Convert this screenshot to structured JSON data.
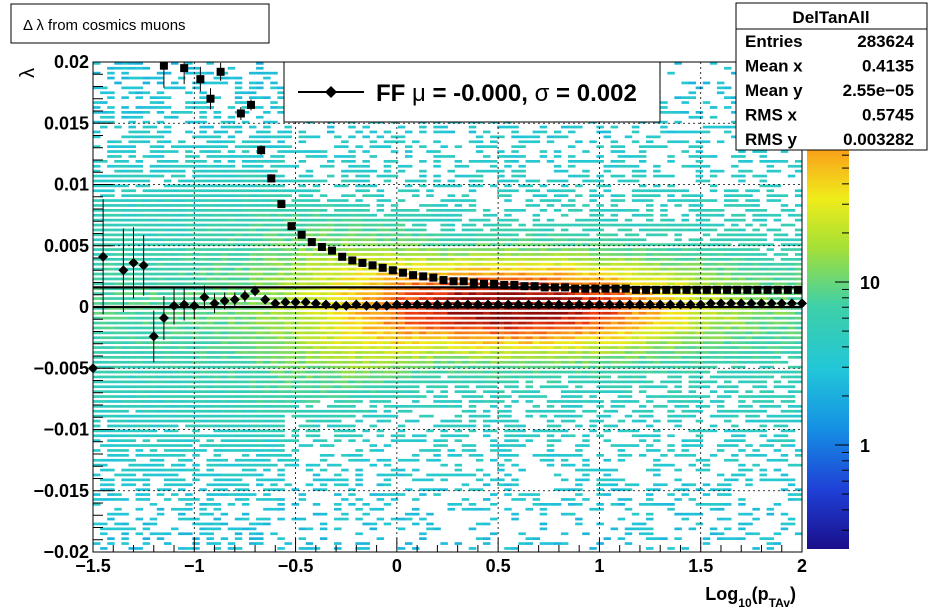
{
  "title": "Δ λ from cosmics muons",
  "stats": {
    "name": "DelTanAll",
    "rows": [
      {
        "label": "Entries",
        "value": "283624"
      },
      {
        "label": "Mean x",
        "value": "0.4135"
      },
      {
        "label": "Mean y",
        "value": "2.55e−05"
      },
      {
        "label": "RMS x",
        "value": "0.5745"
      },
      {
        "label": "RMS y",
        "value": "0.003282"
      }
    ]
  },
  "fit_legend": {
    "text_ff": "FF",
    "mu_symbol": "μ",
    "text_mu": " = -0.000,",
    "sigma_symbol": "σ",
    "text_sigma": " =   0.002"
  },
  "colors": {
    "fit_line": "#000000",
    "marker": "#000000",
    "grid": "#000000"
  },
  "chart_data": {
    "type": "heatmap",
    "xlabel": "Log",
    "xlabel_sub": "10",
    "xlabel_paren": "(p",
    "xlabel_sub2": "TAv",
    "xlabel_close": ")",
    "ylabel": "λ",
    "xlim": [
      -1.5,
      2.0
    ],
    "ylim": [
      -0.02,
      0.02
    ],
    "x_ticks": [
      "−1.5",
      "−1",
      "−0.5",
      "0",
      "0.5",
      "1",
      "1.5",
      "2"
    ],
    "y_ticks": [
      "−0.02",
      "−0.015",
      "−0.01",
      "−0.005",
      "0",
      "0.005",
      "0.01",
      "0.015",
      "0.02"
    ],
    "z_scale": "log",
    "z_ticks": [
      "1",
      "10"
    ],
    "grid": true,
    "series": [
      {
        "kind": "profile_rms",
        "marker": "square",
        "x": [
          -1.15,
          -1.05,
          -0.97,
          -0.92,
          -0.87,
          -0.77,
          -0.72,
          -0.67,
          -0.62,
          -0.57,
          -0.52,
          -0.47,
          -0.42,
          -0.37,
          -0.32,
          -0.27,
          -0.22,
          -0.17,
          -0.12,
          -0.07,
          -0.02,
          0.03,
          0.08,
          0.13,
          0.18,
          0.23,
          0.28,
          0.33,
          0.38,
          0.43,
          0.48,
          0.53,
          0.58,
          0.63,
          0.68,
          0.73,
          0.78,
          0.83,
          0.88,
          0.93,
          0.98,
          1.03,
          1.08,
          1.13,
          1.18,
          1.23,
          1.28,
          1.33,
          1.38,
          1.43,
          1.48,
          1.53,
          1.58,
          1.63,
          1.68,
          1.73,
          1.78,
          1.83,
          1.88,
          1.93,
          1.98
        ],
        "y": [
          0.0197,
          0.0195,
          0.0186,
          0.017,
          0.0192,
          0.0158,
          0.0165,
          0.0128,
          0.0105,
          0.0084,
          0.0066,
          0.0059,
          0.0053,
          0.0049,
          0.0046,
          0.0041,
          0.0038,
          0.0036,
          0.0034,
          0.0032,
          0.003,
          0.0028,
          0.0026,
          0.0025,
          0.0024,
          0.0022,
          0.0021,
          0.0021,
          0.002,
          0.0019,
          0.0019,
          0.0018,
          0.0018,
          0.0017,
          0.0017,
          0.0016,
          0.0016,
          0.0016,
          0.0015,
          0.0015,
          0.0015,
          0.0015,
          0.0015,
          0.0015,
          0.0014,
          0.0014,
          0.0014,
          0.0014,
          0.0014,
          0.0014,
          0.0014,
          0.0014,
          0.0014,
          0.0014,
          0.0014,
          0.0014,
          0.0014,
          0.0014,
          0.0014,
          0.0014,
          0.0014
        ]
      },
      {
        "kind": "profile_mean",
        "marker": "diamond",
        "x": [
          -1.5,
          -1.45,
          -1.35,
          -1.3,
          -1.25,
          -1.2,
          -1.15,
          -1.1,
          -1.05,
          -1.0,
          -0.95,
          -0.9,
          -0.85,
          -0.8,
          -0.75,
          -0.7,
          -0.65,
          -0.6,
          -0.55,
          -0.5,
          -0.45,
          -0.4,
          -0.35,
          -0.3,
          -0.25,
          -0.2,
          -0.15,
          -0.1,
          -0.05,
          0.0,
          0.05,
          0.1,
          0.15,
          0.2,
          0.25,
          0.3,
          0.35,
          0.4,
          0.45,
          0.5,
          0.55,
          0.6,
          0.65,
          0.7,
          0.75,
          0.8,
          0.85,
          0.9,
          0.95,
          1.0,
          1.05,
          1.1,
          1.15,
          1.2,
          1.25,
          1.3,
          1.35,
          1.4,
          1.45,
          1.5,
          1.55,
          1.6,
          1.65,
          1.7,
          1.75,
          1.8,
          1.85,
          1.9,
          1.95,
          2.0
        ],
        "y": [
          -0.005,
          0.0041,
          0.003,
          0.0036,
          0.0034,
          -0.0024,
          -0.0009,
          0.0001,
          0.0002,
          0.0001,
          0.0008,
          0.0003,
          0.0005,
          0.0006,
          0.0009,
          0.0013,
          0.0006,
          0.0003,
          0.0004,
          0.0004,
          0.0004,
          0.0003,
          0.0002,
          0.0001,
          0.0001,
          0.0002,
          0.0001,
          0.0001,
          0.0001,
          0.0002,
          0.0002,
          0.0002,
          0.0002,
          0.0002,
          0.0002,
          0.0002,
          0.0002,
          0.0002,
          0.0002,
          0.0002,
          0.0002,
          0.0002,
          0.0002,
          0.0002,
          0.0002,
          0.0002,
          0.0002,
          0.0002,
          0.0002,
          0.0002,
          0.0002,
          0.0002,
          0.0002,
          0.0002,
          0.0002,
          0.0002,
          0.0002,
          0.0002,
          0.0002,
          0.0002,
          0.0003,
          0.0003,
          0.0003,
          0.0003,
          0.0003,
          0.0003,
          0.0003,
          0.0003,
          0.0003,
          0.0003
        ]
      }
    ],
    "fit_lines": [
      {
        "name": "mean_fit",
        "y": 0.0
      },
      {
        "name": "rms_fit",
        "y": 0.0016
      }
    ]
  }
}
